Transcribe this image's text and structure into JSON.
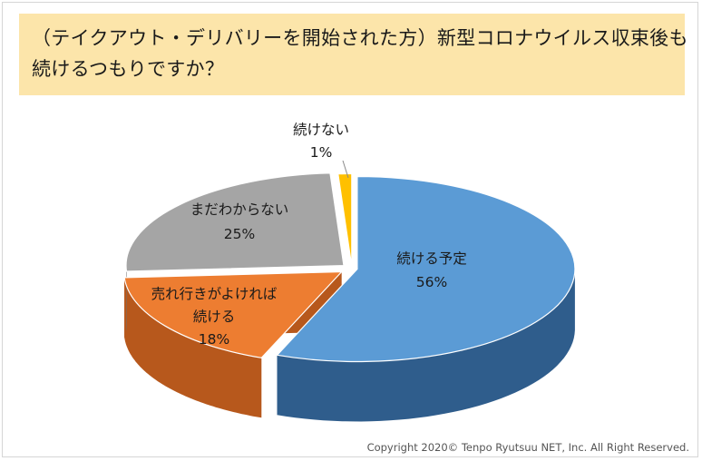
{
  "title": {
    "line1": "（テイクアウト・デリバリーを開始された方）新型コロナウイルス収束後も",
    "line2": "続けるつもりですか？"
  },
  "copyright": "Copyright 2020© Tenpo Ryutsuu NET, Inc. All Right Reserved.",
  "chart_data": {
    "type": "pie",
    "title": "（テイクアウト・デリバリーを開始された方）新型コロナウイルス収束後も続けるつもりですか？",
    "slices": [
      {
        "label": "続ける予定",
        "value": 56,
        "pct_text": "56%",
        "color": "#5b9bd5",
        "side": "#2f5d8c"
      },
      {
        "label": "売れ行きがよければ\n続ける",
        "value": 18,
        "pct_text": "18%",
        "color": "#ed7d31",
        "side": "#b7581c"
      },
      {
        "label": "まだわからない",
        "value": 25,
        "pct_text": "25%",
        "color": "#a5a5a5",
        "side": "#6f6f6f"
      },
      {
        "label": "続けない",
        "value": 1,
        "pct_text": "1%",
        "color": "#ffc000",
        "side": "#c79300"
      }
    ]
  }
}
